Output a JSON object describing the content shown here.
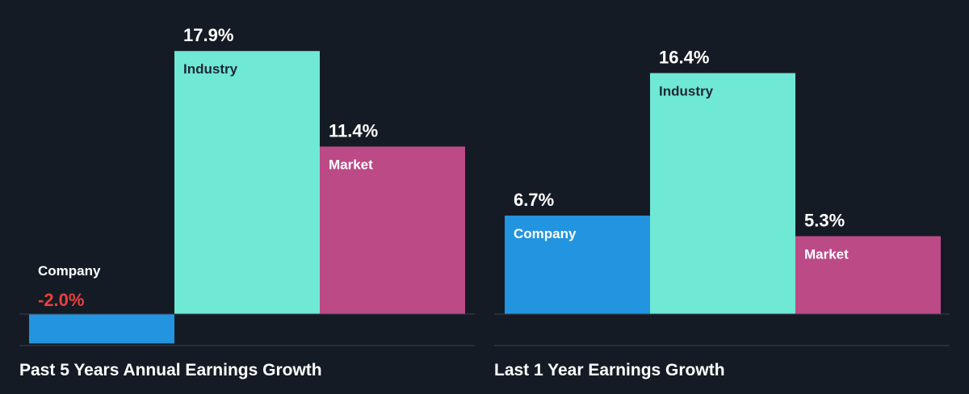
{
  "chart_data": [
    {
      "type": "bar",
      "title": "Past 5 Years Annual Earnings Growth",
      "categories": [
        "Company",
        "Industry",
        "Market"
      ],
      "values": [
        -2.0,
        17.9,
        11.4
      ],
      "value_labels": [
        "-2.0%",
        "17.9%",
        "11.4%"
      ],
      "unit": "%",
      "ylim": [
        -3.1,
        20.3
      ],
      "colors": [
        "#2394df",
        "#6fe8d6",
        "#bb4a87"
      ],
      "value_label_colors": [
        "#e64141",
        "#ffffff",
        "#ffffff"
      ],
      "category_label_colors": [
        "#ffffff",
        "#1d2733",
        "#ffffff"
      ],
      "grid": false,
      "legend": "none"
    },
    {
      "type": "bar",
      "title": "Last 1 Year Earnings Growth",
      "categories": [
        "Company",
        "Industry",
        "Market"
      ],
      "values": [
        6.7,
        16.4,
        5.3
      ],
      "value_labels": [
        "6.7%",
        "16.4%",
        "5.3%"
      ],
      "unit": "%",
      "ylim": [
        0,
        18.7
      ],
      "colors": [
        "#2394df",
        "#6fe8d6",
        "#bb4a87"
      ],
      "value_label_colors": [
        "#ffffff",
        "#ffffff",
        "#ffffff"
      ],
      "category_label_colors": [
        "#ffffff",
        "#1d2733",
        "#ffffff"
      ],
      "grid": false,
      "legend": "none"
    }
  ],
  "colors": {
    "background": "#151b24",
    "axis_line": "#3a414c",
    "text": "#ffffff"
  }
}
